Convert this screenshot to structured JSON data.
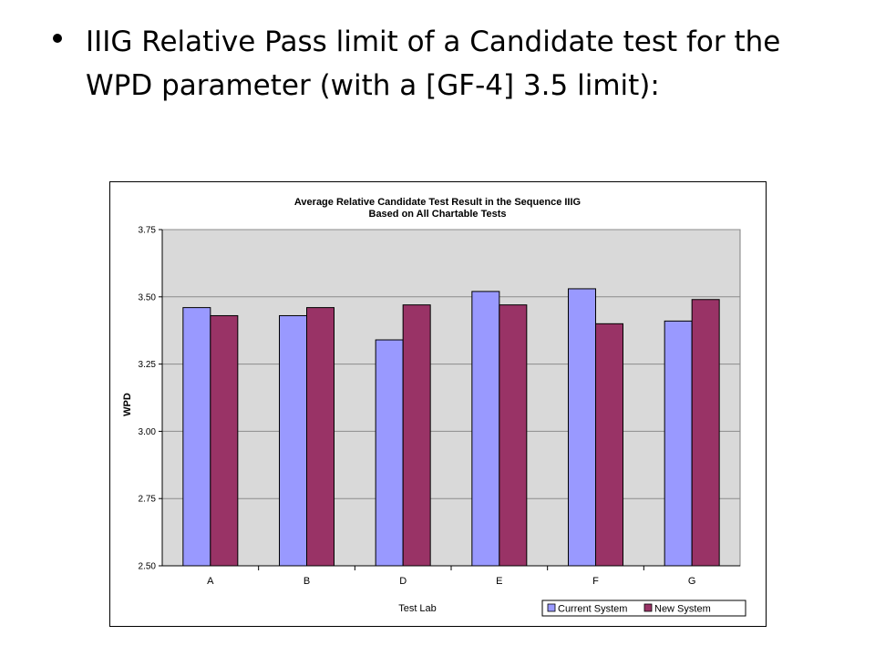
{
  "slide": {
    "bullet_text": "IIIG Relative Pass limit of a Candidate test for the WPD parameter (with a [GF-4] 3.5 limit):"
  },
  "colors": {
    "plot_background": "#d9d9d9",
    "current_system": "#9999ff",
    "new_system": "#993366",
    "gridline": "#8c8c8c"
  },
  "chart_data": {
    "type": "bar",
    "title": "Average Relative Candidate Test Result in the Sequence IIIG",
    "subtitle": "Based on All Chartable Tests",
    "xlabel": "Test Lab",
    "ylabel": "WPD",
    "ylim": [
      2.5,
      3.75
    ],
    "yticks": [
      "2.50",
      "2.75",
      "3.00",
      "3.25",
      "3.50",
      "3.75"
    ],
    "grid": true,
    "legend_position": "bottom-right",
    "categories": [
      "A",
      "B",
      "D",
      "E",
      "F",
      "G"
    ],
    "series": [
      {
        "name": "Current System",
        "values": [
          3.46,
          3.43,
          3.34,
          3.52,
          3.53,
          3.41
        ]
      },
      {
        "name": "New System",
        "values": [
          3.43,
          3.46,
          3.47,
          3.47,
          3.4,
          3.49
        ]
      }
    ]
  }
}
